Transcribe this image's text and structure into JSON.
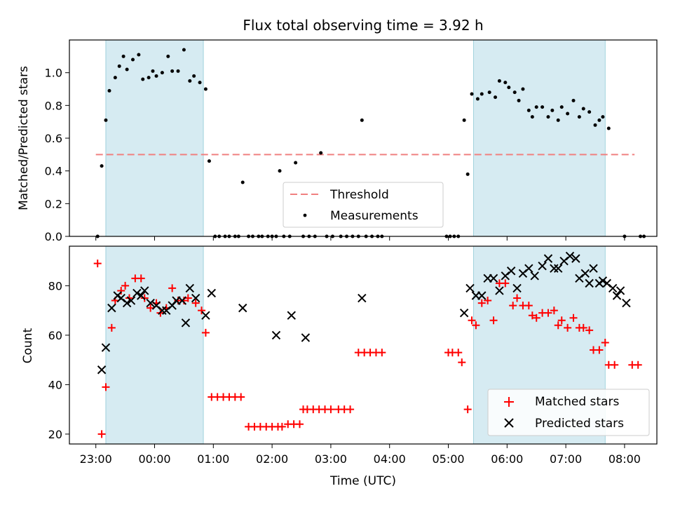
{
  "title": "Flux total observing time = 3.92 h",
  "chart_data": [
    {
      "type": "scatter",
      "panel": "top",
      "ylabel": "Matched/Predicted stars",
      "x_unit": "hours since 23:00 UTC",
      "xlim": [
        -0.45,
        9.55
      ],
      "ylim": [
        0,
        1.2
      ],
      "yticks": [
        0.0,
        0.2,
        0.4,
        0.6,
        0.8,
        1.0
      ],
      "ytick_labels": [
        "0.0",
        "0.2",
        "0.4",
        "0.6",
        "0.8",
        "1.0"
      ],
      "xticks": [
        0,
        1,
        2,
        3,
        4,
        5,
        6,
        7,
        8,
        9
      ],
      "shaded_spans": [
        [
          0.17,
          1.83
        ],
        [
          6.43,
          8.67
        ]
      ],
      "threshold": {
        "name": "Threshold",
        "value": 0.5,
        "x_range": [
          0,
          9.17
        ],
        "color": "#f08080"
      },
      "legend": {
        "placement": "lower center",
        "entries": [
          "Threshold",
          "Measurements"
        ]
      },
      "series": [
        {
          "name": "Measurements",
          "color": "#000000",
          "points": [
            [
              0.03,
              0.0
            ],
            [
              0.1,
              0.43
            ],
            [
              0.17,
              0.71
            ],
            [
              0.23,
              0.89
            ],
            [
              0.33,
              0.97
            ],
            [
              0.4,
              1.04
            ],
            [
              0.47,
              1.1
            ],
            [
              0.53,
              1.02
            ],
            [
              0.63,
              1.08
            ],
            [
              0.73,
              1.11
            ],
            [
              0.8,
              0.96
            ],
            [
              0.9,
              0.97
            ],
            [
              0.97,
              1.01
            ],
            [
              1.03,
              0.98
            ],
            [
              1.13,
              1.0
            ],
            [
              1.23,
              1.1
            ],
            [
              1.3,
              1.01
            ],
            [
              1.4,
              1.01
            ],
            [
              1.5,
              1.14
            ],
            [
              1.6,
              0.95
            ],
            [
              1.67,
              0.98
            ],
            [
              1.77,
              0.94
            ],
            [
              1.87,
              0.9
            ],
            [
              1.93,
              0.46
            ],
            [
              2.03,
              0.0
            ],
            [
              2.1,
              0.0
            ],
            [
              2.2,
              0.0
            ],
            [
              2.27,
              0.0
            ],
            [
              2.37,
              0.0
            ],
            [
              2.43,
              0.0
            ],
            [
              2.5,
              0.33
            ],
            [
              2.6,
              0.0
            ],
            [
              2.67,
              0.0
            ],
            [
              2.77,
              0.0
            ],
            [
              2.83,
              0.0
            ],
            [
              2.93,
              0.0
            ],
            [
              3.0,
              0.0
            ],
            [
              3.07,
              0.0
            ],
            [
              3.13,
              0.4
            ],
            [
              3.2,
              0.0
            ],
            [
              3.3,
              0.0
            ],
            [
              3.4,
              0.45
            ],
            [
              3.53,
              0.0
            ],
            [
              3.63,
              0.0
            ],
            [
              3.73,
              0.0
            ],
            [
              3.83,
              0.51
            ],
            [
              3.93,
              0.0
            ],
            [
              4.03,
              0.0
            ],
            [
              4.17,
              0.0
            ],
            [
              4.27,
              0.0
            ],
            [
              4.37,
              0.0
            ],
            [
              4.47,
              0.0
            ],
            [
              4.53,
              0.71
            ],
            [
              4.6,
              0.0
            ],
            [
              4.7,
              0.0
            ],
            [
              4.8,
              0.0
            ],
            [
              4.87,
              0.0
            ],
            [
              5.97,
              0.0
            ],
            [
              6.03,
              0.0
            ],
            [
              6.1,
              0.0
            ],
            [
              6.17,
              0.0
            ],
            [
              6.27,
              0.71
            ],
            [
              6.33,
              0.38
            ],
            [
              6.4,
              0.87
            ],
            [
              6.5,
              0.84
            ],
            [
              6.57,
              0.87
            ],
            [
              6.7,
              0.88
            ],
            [
              6.8,
              0.85
            ],
            [
              6.87,
              0.95
            ],
            [
              6.97,
              0.94
            ],
            [
              7.03,
              0.91
            ],
            [
              7.13,
              0.88
            ],
            [
              7.2,
              0.83
            ],
            [
              7.27,
              0.9
            ],
            [
              7.37,
              0.77
            ],
            [
              7.43,
              0.73
            ],
            [
              7.5,
              0.79
            ],
            [
              7.6,
              0.79
            ],
            [
              7.7,
              0.73
            ],
            [
              7.77,
              0.77
            ],
            [
              7.87,
              0.71
            ],
            [
              7.93,
              0.79
            ],
            [
              8.03,
              0.75
            ],
            [
              8.13,
              0.83
            ],
            [
              8.23,
              0.73
            ],
            [
              8.3,
              0.78
            ],
            [
              8.4,
              0.76
            ],
            [
              8.5,
              0.68
            ],
            [
              8.57,
              0.71
            ],
            [
              8.63,
              0.73
            ],
            [
              8.73,
              0.66
            ],
            [
              9.0,
              0.0
            ],
            [
              9.27,
              0.0
            ],
            [
              9.33,
              0.0
            ]
          ]
        }
      ]
    },
    {
      "type": "scatter",
      "panel": "bottom",
      "xlabel": "Time (UTC)",
      "ylabel": "Count",
      "x_unit": "hours since 23:00 UTC",
      "xlim": [
        -0.45,
        9.55
      ],
      "ylim": [
        16,
        96
      ],
      "yticks": [
        20,
        40,
        60,
        80
      ],
      "ytick_labels": [
        "20",
        "40",
        "60",
        "80"
      ],
      "xticks": [
        0,
        1,
        2,
        3,
        4,
        5,
        6,
        7,
        8,
        9
      ],
      "xtick_labels": [
        "23:00",
        "00:00",
        "01:00",
        "02:00",
        "03:00",
        "04:00",
        "05:00",
        "06:00",
        "07:00",
        "08:00"
      ],
      "shaded_spans": [
        [
          0.17,
          1.83
        ],
        [
          6.43,
          8.67
        ]
      ],
      "legend": {
        "placement": "lower right",
        "entries": [
          "Matched stars",
          "Predicted stars"
        ]
      },
      "series": [
        {
          "name": "Matched stars",
          "marker": "plus",
          "color": "#ff0000",
          "points": [
            [
              0.03,
              89
            ],
            [
              0.1,
              20
            ],
            [
              0.17,
              39
            ],
            [
              0.27,
              63
            ],
            [
              0.33,
              74
            ],
            [
              0.43,
              78
            ],
            [
              0.5,
              80
            ],
            [
              0.57,
              75
            ],
            [
              0.67,
              83
            ],
            [
              0.77,
              83
            ],
            [
              0.83,
              75
            ],
            [
              0.93,
              71
            ],
            [
              1.03,
              73
            ],
            [
              1.1,
              69
            ],
            [
              1.2,
              71
            ],
            [
              1.3,
              79
            ],
            [
              1.4,
              74
            ],
            [
              1.5,
              74
            ],
            [
              1.57,
              75
            ],
            [
              1.7,
              73
            ],
            [
              1.8,
              70
            ],
            [
              1.87,
              61
            ],
            [
              1.97,
              35
            ],
            [
              2.07,
              35
            ],
            [
              2.17,
              35
            ],
            [
              2.27,
              35
            ],
            [
              2.37,
              35
            ],
            [
              2.47,
              35
            ],
            [
              2.6,
              23
            ],
            [
              2.7,
              23
            ],
            [
              2.8,
              23
            ],
            [
              2.9,
              23
            ],
            [
              3.0,
              23
            ],
            [
              3.1,
              23
            ],
            [
              3.17,
              23
            ],
            [
              3.27,
              24
            ],
            [
              3.37,
              24
            ],
            [
              3.47,
              24
            ],
            [
              3.53,
              30
            ],
            [
              3.6,
              30
            ],
            [
              3.7,
              30
            ],
            [
              3.8,
              30
            ],
            [
              3.9,
              30
            ],
            [
              4.0,
              30
            ],
            [
              4.13,
              30
            ],
            [
              4.23,
              30
            ],
            [
              4.33,
              30
            ],
            [
              4.47,
              53
            ],
            [
              4.57,
              53
            ],
            [
              4.67,
              53
            ],
            [
              4.77,
              53
            ],
            [
              4.87,
              53
            ],
            [
              6.0,
              53
            ],
            [
              6.07,
              53
            ],
            [
              6.17,
              53
            ],
            [
              6.23,
              49
            ],
            [
              6.33,
              30
            ],
            [
              6.4,
              66
            ],
            [
              6.47,
              64
            ],
            [
              6.57,
              73
            ],
            [
              6.67,
              74
            ],
            [
              6.77,
              66
            ],
            [
              6.87,
              81
            ],
            [
              6.97,
              81
            ],
            [
              7.1,
              72
            ],
            [
              7.17,
              75
            ],
            [
              7.27,
              72
            ],
            [
              7.37,
              72
            ],
            [
              7.43,
              68
            ],
            [
              7.5,
              67
            ],
            [
              7.6,
              69
            ],
            [
              7.7,
              69
            ],
            [
              7.8,
              70
            ],
            [
              7.87,
              64
            ],
            [
              7.93,
              66
            ],
            [
              8.03,
              63
            ],
            [
              8.13,
              67
            ],
            [
              8.23,
              63
            ],
            [
              8.3,
              63
            ],
            [
              8.4,
              62
            ],
            [
              8.47,
              54
            ],
            [
              8.57,
              54
            ],
            [
              8.67,
              57
            ],
            [
              8.73,
              48
            ],
            [
              8.83,
              48
            ],
            [
              9.13,
              48
            ],
            [
              9.23,
              48
            ]
          ]
        },
        {
          "name": "Predicted stars",
          "marker": "x",
          "color": "#000000",
          "points": [
            [
              0.1,
              46
            ],
            [
              0.17,
              55
            ],
            [
              0.27,
              71
            ],
            [
              0.37,
              76
            ],
            [
              0.43,
              75
            ],
            [
              0.53,
              73
            ],
            [
              0.6,
              74
            ],
            [
              0.7,
              77
            ],
            [
              0.77,
              76
            ],
            [
              0.83,
              78
            ],
            [
              0.93,
              73
            ],
            [
              1.03,
              72
            ],
            [
              1.13,
              70
            ],
            [
              1.2,
              70
            ],
            [
              1.3,
              72
            ],
            [
              1.37,
              74
            ],
            [
              1.47,
              74
            ],
            [
              1.53,
              65
            ],
            [
              1.6,
              79
            ],
            [
              1.7,
              75
            ],
            [
              1.87,
              68
            ],
            [
              1.97,
              77
            ],
            [
              2.5,
              71
            ],
            [
              3.07,
              60
            ],
            [
              3.33,
              68
            ],
            [
              3.57,
              59
            ],
            [
              4.53,
              75
            ],
            [
              6.27,
              69
            ],
            [
              6.37,
              79
            ],
            [
              6.47,
              76
            ],
            [
              6.57,
              76
            ],
            [
              6.67,
              83
            ],
            [
              6.77,
              83
            ],
            [
              6.87,
              78
            ],
            [
              6.97,
              84
            ],
            [
              7.07,
              86
            ],
            [
              7.17,
              79
            ],
            [
              7.27,
              85
            ],
            [
              7.37,
              87
            ],
            [
              7.47,
              84
            ],
            [
              7.6,
              88
            ],
            [
              7.7,
              91
            ],
            [
              7.8,
              87
            ],
            [
              7.87,
              87
            ],
            [
              7.97,
              90
            ],
            [
              8.07,
              92
            ],
            [
              8.17,
              91
            ],
            [
              8.23,
              83
            ],
            [
              8.33,
              85
            ],
            [
              8.4,
              81
            ],
            [
              8.47,
              87
            ],
            [
              8.57,
              81
            ],
            [
              8.63,
              82
            ],
            [
              8.7,
              81
            ],
            [
              8.8,
              79
            ],
            [
              8.87,
              76
            ],
            [
              8.93,
              78
            ],
            [
              9.03,
              73
            ]
          ]
        }
      ]
    }
  ]
}
